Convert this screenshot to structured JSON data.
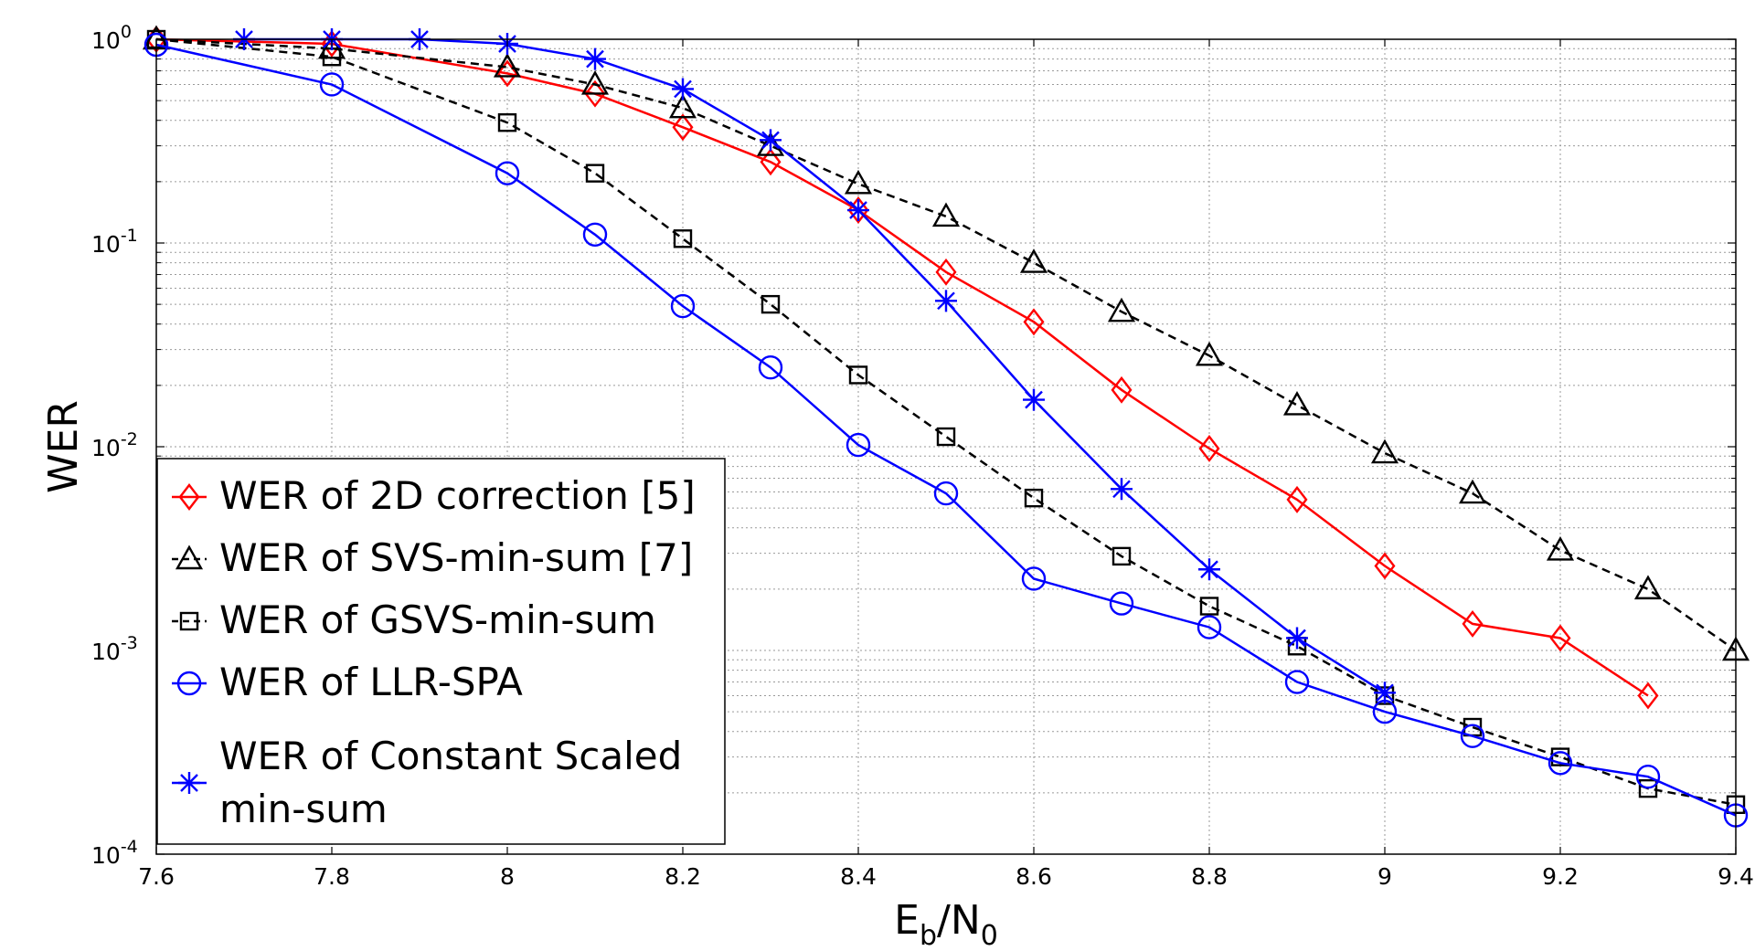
{
  "chart_data": {
    "type": "line",
    "title": "",
    "xlabel_main": "E",
    "xlabel_sub1": "b",
    "xlabel_mid": "/N",
    "xlabel_sub2": "0",
    "ylabel": "WER",
    "xlim": [
      7.6,
      9.4
    ],
    "ylim": [
      0.0001,
      1
    ],
    "yscale": "log",
    "grid": true,
    "legend_position": "bottom-left",
    "x_ticks": [
      7.6,
      7.8,
      8,
      8.2,
      8.4,
      8.6,
      8.8,
      9,
      9.2,
      9.4
    ],
    "x_tick_labels": [
      "7.6",
      "7.8",
      "8",
      "8.2",
      "8.4",
      "8.6",
      "8.8",
      "9",
      "9.2",
      "9.4"
    ],
    "y_ticks": [
      {
        "value": 1,
        "base": "10",
        "exp": "0"
      },
      {
        "value": 0.1,
        "base": "10",
        "exp": "-1"
      },
      {
        "value": 0.01,
        "base": "10",
        "exp": "-2"
      },
      {
        "value": 0.001,
        "base": "10",
        "exp": "-3"
      },
      {
        "value": 0.0001,
        "base": "10",
        "exp": "-4"
      }
    ],
    "series": [
      {
        "name": "WER of 2D correction [5]",
        "color": "#ff0000",
        "dashed": false,
        "marker": "diamond",
        "x": [
          7.6,
          7.8,
          8.0,
          8.1,
          8.2,
          8.3,
          8.4,
          8.5,
          8.6,
          8.7,
          8.8,
          8.9,
          9.0,
          9.1,
          9.2,
          9.3
        ],
        "y": [
          1.0,
          0.95,
          0.68,
          0.54,
          0.37,
          0.25,
          0.145,
          0.072,
          0.041,
          0.019,
          0.0098,
          0.0055,
          0.0026,
          0.00135,
          0.00115,
          0.0006
        ]
      },
      {
        "name": "WER of SVS-min-sum [7]",
        "color": "#000000",
        "dashed": true,
        "marker": "triangle",
        "x": [
          7.6,
          7.8,
          8.0,
          8.1,
          8.2,
          8.3,
          8.4,
          8.5,
          8.6,
          8.7,
          8.8,
          8.9,
          9.0,
          9.1,
          9.2,
          9.3,
          9.4
        ],
        "y": [
          1.0,
          0.9,
          0.73,
          0.6,
          0.46,
          0.3,
          0.195,
          0.135,
          0.08,
          0.046,
          0.028,
          0.016,
          0.0093,
          0.0059,
          0.0031,
          0.002,
          0.001
        ]
      },
      {
        "name": "WER of GSVS-min-sum",
        "color": "#000000",
        "dashed": true,
        "marker": "square",
        "x": [
          7.6,
          7.8,
          8.0,
          8.1,
          8.2,
          8.3,
          8.4,
          8.5,
          8.6,
          8.7,
          8.8,
          8.9,
          9.0,
          9.1,
          9.2,
          9.3,
          9.4
        ],
        "y": [
          1.0,
          0.82,
          0.39,
          0.22,
          0.105,
          0.05,
          0.0225,
          0.0112,
          0.0056,
          0.0029,
          0.00165,
          0.00105,
          0.0006,
          0.00042,
          0.0003,
          0.00021,
          0.000175
        ]
      },
      {
        "name": "WER of LLR-SPA",
        "color": "#0000ff",
        "dashed": false,
        "marker": "circle",
        "x": [
          7.6,
          7.8,
          8.0,
          8.1,
          8.2,
          8.3,
          8.4,
          8.5,
          8.6,
          8.7,
          8.8,
          8.9,
          9.0,
          9.1,
          9.2,
          9.3,
          9.4
        ],
        "y": [
          0.94,
          0.6,
          0.22,
          0.11,
          0.049,
          0.0245,
          0.0102,
          0.0059,
          0.00225,
          0.0017,
          0.0013,
          0.0007,
          0.0005,
          0.00038,
          0.00028,
          0.00024,
          0.000155
        ]
      },
      {
        "name": "WER of Constant Scaled min-sum",
        "name_line1": "WER of Constant Scaled",
        "name_line2": "min-sum",
        "color": "#0000ff",
        "dashed": false,
        "marker": "star",
        "x": [
          7.7,
          7.8,
          7.9,
          8.0,
          8.1,
          8.2,
          8.3,
          8.4,
          8.5,
          8.6,
          8.7,
          8.8,
          8.9,
          9.0
        ],
        "y": [
          1.0,
          1.0,
          1.0,
          0.95,
          0.8,
          0.57,
          0.32,
          0.145,
          0.052,
          0.017,
          0.0062,
          0.0025,
          0.00115,
          0.00062
        ]
      }
    ]
  }
}
